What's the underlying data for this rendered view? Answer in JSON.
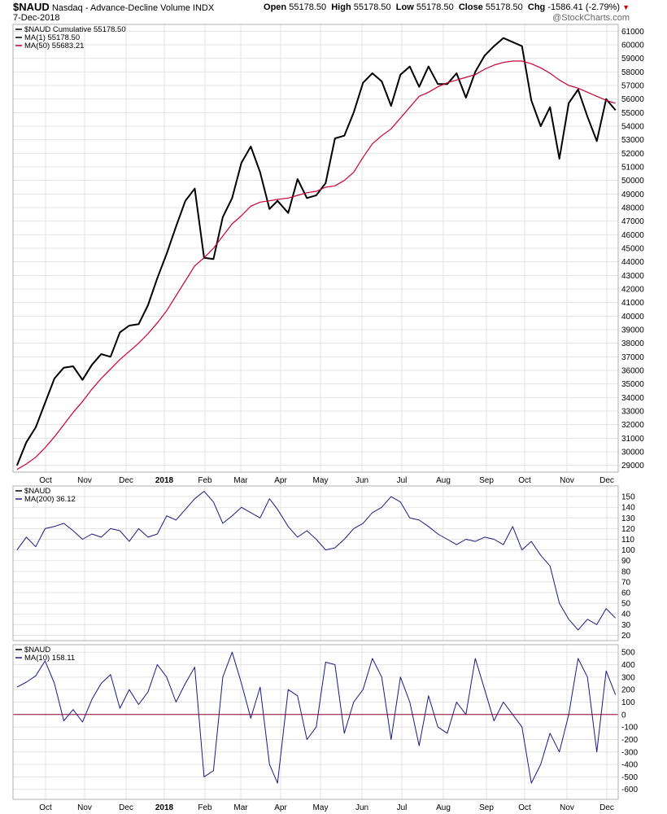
{
  "header": {
    "symbol": "$NAUD",
    "description": "Nasdaq - Advance-Decline Volume",
    "exchange": "INDX",
    "date": "7-Dec-2018",
    "watermark": "@StockCharts.com",
    "open_label": "Open",
    "open": "55178.50",
    "high_label": "High",
    "high": "55178.50",
    "low_label": "Low",
    "low": "55178.50",
    "close_label": "Close",
    "close": "55178.50",
    "chg_label": "Chg",
    "chg": "-1586.41 (-2.79%)",
    "chg_arrow": "▼"
  },
  "colors": {
    "price": "#000000",
    "ma50": "#cc0033",
    "oscillator": "#1a1a80",
    "zero_line": "#990033",
    "grid": "#e3e3e3",
    "frame": "#b0b0b0"
  },
  "x_axis": {
    "labels": [
      "Oct",
      "Nov",
      "Dec",
      "2018",
      "Feb",
      "Mar",
      "Apr",
      "May",
      "Jun",
      "Jul",
      "Aug",
      "Sep",
      "Oct",
      "Nov",
      "Dec"
    ],
    "bold": [
      false,
      false,
      false,
      true,
      false,
      false,
      false,
      false,
      false,
      false,
      false,
      false,
      false,
      false,
      false
    ]
  },
  "chart_data": [
    {
      "type": "line",
      "panel": "price",
      "legend": [
        {
          "label": "$NAUD Cumulative 55178.50",
          "color": "#000000"
        },
        {
          "label": "MA(1) 55178.50",
          "color": "#000000"
        },
        {
          "label": "MA(50) 55683.21",
          "color": "#cc0033"
        }
      ],
      "ylim": [
        28500,
        61500
      ],
      "yticks": [
        29000,
        30000,
        31000,
        32000,
        33000,
        34000,
        35000,
        36000,
        37000,
        38000,
        39000,
        40000,
        41000,
        42000,
        43000,
        44000,
        45000,
        46000,
        47000,
        48000,
        49000,
        50000,
        51000,
        52000,
        53000,
        54000,
        55000,
        56000,
        57000,
        58000,
        59000,
        60000,
        61000
      ],
      "x": [
        "2017-09-15",
        "2017-09-22",
        "2017-09-29",
        "2017-10-06",
        "2017-10-13",
        "2017-10-20",
        "2017-10-27",
        "2017-11-03",
        "2017-11-10",
        "2017-11-17",
        "2017-11-24",
        "2017-12-01",
        "2017-12-08",
        "2017-12-15",
        "2017-12-22",
        "2017-12-29",
        "2018-01-05",
        "2018-01-12",
        "2018-01-19",
        "2018-01-26",
        "2018-02-02",
        "2018-02-09",
        "2018-02-16",
        "2018-02-23",
        "2018-03-02",
        "2018-03-09",
        "2018-03-16",
        "2018-03-23",
        "2018-03-29",
        "2018-04-06",
        "2018-04-13",
        "2018-04-20",
        "2018-04-27",
        "2018-05-04",
        "2018-05-11",
        "2018-05-18",
        "2018-05-25",
        "2018-06-01",
        "2018-06-08",
        "2018-06-15",
        "2018-06-22",
        "2018-06-29",
        "2018-07-06",
        "2018-07-13",
        "2018-07-20",
        "2018-07-27",
        "2018-08-03",
        "2018-08-10",
        "2018-08-17",
        "2018-08-24",
        "2018-08-31",
        "2018-09-07",
        "2018-09-14",
        "2018-09-21",
        "2018-09-28",
        "2018-10-05",
        "2018-10-12",
        "2018-10-19",
        "2018-10-26",
        "2018-11-02",
        "2018-11-09",
        "2018-11-16",
        "2018-11-23",
        "2018-11-30",
        "2018-12-07"
      ],
      "series": [
        {
          "name": "$NAUD Cumulative",
          "values": [
            29000,
            30700,
            31800,
            33600,
            35400,
            36200,
            36300,
            35300,
            36400,
            37200,
            37000,
            38800,
            39300,
            39400,
            40800,
            42800,
            44600,
            46600,
            48500,
            49400,
            44300,
            44200,
            47300,
            48700,
            51300,
            52500,
            50600,
            47900,
            48500,
            47600,
            50100,
            48700,
            48900,
            49800,
            53100,
            53300,
            55000,
            57200,
            57900,
            57300,
            55500,
            57800,
            58400,
            56900,
            58400,
            57100,
            57100,
            57900,
            56100,
            58000,
            59200,
            59900,
            60500,
            60200,
            59900,
            55900,
            54000,
            55400,
            51600,
            55700,
            56700,
            54700,
            52900,
            56000,
            55178.5
          ]
        },
        {
          "name": "MA(50)",
          "values": [
            28700,
            29100,
            29600,
            30300,
            31100,
            32000,
            32900,
            33700,
            34600,
            35400,
            36100,
            36800,
            37400,
            38000,
            38700,
            39500,
            40400,
            41500,
            42600,
            43700,
            44300,
            45000,
            45900,
            46800,
            47400,
            48100,
            48400,
            48500,
            48600,
            48700,
            48900,
            49100,
            49200,
            49500,
            49600,
            50000,
            50600,
            51700,
            52700,
            53300,
            53800,
            54600,
            55400,
            56200,
            56500,
            56900,
            57200,
            57400,
            57600,
            57800,
            58200,
            58500,
            58700,
            58800,
            58800,
            58600,
            58300,
            57900,
            57400,
            57000,
            56800,
            56500,
            56200,
            55900,
            55683.21
          ]
        }
      ]
    },
    {
      "type": "line",
      "panel": "ma200",
      "legend": [
        {
          "label": "$NAUD",
          "color": "#000000"
        },
        {
          "label": "MA(200) 36.12",
          "color": "#1a1a80"
        }
      ],
      "ylim": [
        15,
        160
      ],
      "yticks": [
        20,
        30,
        40,
        50,
        60,
        70,
        80,
        90,
        100,
        110,
        120,
        130,
        140,
        150
      ],
      "x": [
        "2017-09-15",
        "2017-09-22",
        "2017-09-29",
        "2017-10-06",
        "2017-10-13",
        "2017-10-20",
        "2017-10-27",
        "2017-11-03",
        "2017-11-10",
        "2017-11-17",
        "2017-11-24",
        "2017-12-01",
        "2017-12-08",
        "2017-12-15",
        "2017-12-22",
        "2017-12-29",
        "2018-01-05",
        "2018-01-12",
        "2018-01-19",
        "2018-01-26",
        "2018-02-02",
        "2018-02-09",
        "2018-02-16",
        "2018-02-23",
        "2018-03-02",
        "2018-03-09",
        "2018-03-16",
        "2018-03-23",
        "2018-03-29",
        "2018-04-06",
        "2018-04-13",
        "2018-04-20",
        "2018-04-27",
        "2018-05-04",
        "2018-05-11",
        "2018-05-18",
        "2018-05-25",
        "2018-06-01",
        "2018-06-08",
        "2018-06-15",
        "2018-06-22",
        "2018-06-29",
        "2018-07-06",
        "2018-07-13",
        "2018-07-20",
        "2018-07-27",
        "2018-08-03",
        "2018-08-10",
        "2018-08-17",
        "2018-08-24",
        "2018-08-31",
        "2018-09-07",
        "2018-09-14",
        "2018-09-21",
        "2018-09-28",
        "2018-10-05",
        "2018-10-12",
        "2018-10-19",
        "2018-10-26",
        "2018-11-02",
        "2018-11-09",
        "2018-11-16",
        "2018-11-23",
        "2018-11-30",
        "2018-12-07"
      ],
      "series": [
        {
          "name": "MA(200)",
          "values": [
            100,
            112,
            103,
            120,
            122,
            125,
            118,
            110,
            115,
            112,
            120,
            118,
            108,
            120,
            112,
            115,
            132,
            128,
            138,
            148,
            155,
            145,
            125,
            132,
            140,
            135,
            130,
            148,
            138,
            122,
            112,
            118,
            110,
            100,
            102,
            110,
            120,
            125,
            135,
            140,
            150,
            145,
            130,
            128,
            122,
            115,
            110,
            105,
            110,
            108,
            112,
            110,
            105,
            122,
            100,
            108,
            95,
            85,
            50,
            35,
            25,
            35,
            30,
            45,
            36.12
          ]
        }
      ]
    },
    {
      "type": "line",
      "panel": "ma10",
      "legend": [
        {
          "label": "$NAUD",
          "color": "#000000"
        },
        {
          "label": "MA(10) 158.11",
          "color": "#1a1a80"
        }
      ],
      "ylim": [
        -680,
        560
      ],
      "yticks": [
        -600,
        -500,
        -400,
        -300,
        -200,
        -100,
        0,
        100,
        200,
        300,
        400,
        500
      ],
      "zero_line": 0,
      "x": [
        "2017-09-15",
        "2017-09-22",
        "2017-09-29",
        "2017-10-06",
        "2017-10-13",
        "2017-10-20",
        "2017-10-27",
        "2017-11-03",
        "2017-11-10",
        "2017-11-17",
        "2017-11-24",
        "2017-12-01",
        "2017-12-08",
        "2017-12-15",
        "2017-12-22",
        "2017-12-29",
        "2018-01-05",
        "2018-01-12",
        "2018-01-19",
        "2018-01-26",
        "2018-02-02",
        "2018-02-09",
        "2018-02-16",
        "2018-02-23",
        "2018-03-02",
        "2018-03-09",
        "2018-03-16",
        "2018-03-23",
        "2018-03-29",
        "2018-04-06",
        "2018-04-13",
        "2018-04-20",
        "2018-04-27",
        "2018-05-04",
        "2018-05-11",
        "2018-05-18",
        "2018-05-25",
        "2018-06-01",
        "2018-06-08",
        "2018-06-15",
        "2018-06-22",
        "2018-06-29",
        "2018-07-06",
        "2018-07-13",
        "2018-07-20",
        "2018-07-27",
        "2018-08-03",
        "2018-08-10",
        "2018-08-17",
        "2018-08-24",
        "2018-08-31",
        "2018-09-07",
        "2018-09-14",
        "2018-09-21",
        "2018-09-28",
        "2018-10-05",
        "2018-10-12",
        "2018-10-19",
        "2018-10-26",
        "2018-11-02",
        "2018-11-09",
        "2018-11-16",
        "2018-11-23",
        "2018-11-30",
        "2018-12-07"
      ],
      "series": [
        {
          "name": "MA(10)",
          "values": [
            220,
            260,
            310,
            430,
            250,
            -50,
            40,
            -60,
            120,
            250,
            320,
            50,
            200,
            80,
            180,
            400,
            300,
            100,
            250,
            380,
            -500,
            -450,
            300,
            500,
            250,
            -30,
            220,
            -400,
            -550,
            200,
            150,
            -200,
            -100,
            420,
            400,
            -150,
            100,
            200,
            450,
            300,
            -200,
            300,
            100,
            -250,
            150,
            -100,
            -150,
            100,
            0,
            450,
            200,
            -50,
            100,
            0,
            -100,
            -550,
            -400,
            -150,
            -300,
            0,
            450,
            300,
            -300,
            350,
            158.11
          ]
        }
      ]
    }
  ]
}
